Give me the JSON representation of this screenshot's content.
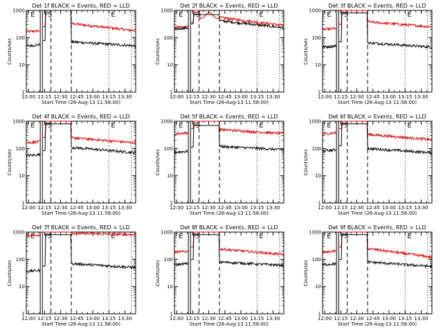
{
  "chart_data": {
    "type": "line",
    "colors": {
      "events": "#000000",
      "lld": "#e00000",
      "axes": "#000000",
      "background": "#ffffff"
    },
    "shared": {
      "ylabel": "Counts/sec",
      "xlabel": "Start Time (26-Aug-13 11:58:00)",
      "yscale": "log",
      "ylim": [
        1,
        1000
      ],
      "y_ticks": [
        "1",
        "10",
        "100",
        "1000"
      ],
      "xlim": [
        "11:58",
        "13:40"
      ],
      "x_ticks": [
        "12:00",
        "12:15",
        "12:30",
        "12:45",
        "13:00",
        "13:15",
        "13:30"
      ],
      "lines": {
        "solid": [
          "12:11",
          "12:13"
        ],
        "dashed": [
          "12:21",
          "12:40"
        ],
        "dotted": [
          "13:15",
          "13:36"
        ]
      },
      "markers": [
        {
          "text": "E",
          "time": "12:02"
        },
        {
          "text": "F",
          "time": "12:15"
        },
        {
          "text": "S",
          "time": "12:18"
        },
        {
          "text": "E",
          "time": "13:17"
        }
      ]
    },
    "panels": [
      {
        "title": "Det 1f BLACK = Events, RED = LLD",
        "black": {
          "pre": 55,
          "post": 70,
          "end": 50,
          "spike": 1000
        },
        "red": {
          "pre": 180,
          "post": 330,
          "end": 180,
          "spike": 1000
        }
      },
      {
        "title": "Det 2f BLACK = Events, RED = LLD",
        "black": {
          "pre": 230,
          "post": 420,
          "end": 230,
          "spike": 700
        },
        "red": {
          "pre": 260,
          "post": 550,
          "end": 280,
          "spike": 1000,
          "bump": 900
        }
      },
      {
        "title": "Det 3f BLACK = Events, RED = LLD",
        "black": {
          "pre": 50,
          "post": 65,
          "end": 45,
          "spike": 800
        },
        "red": {
          "pre": 220,
          "post": 380,
          "end": 250,
          "spike": 1000
        }
      },
      {
        "title": "Det 4f BLACK = Events, RED = LLD",
        "black": {
          "pre": 60,
          "post": 110,
          "end": 70,
          "spike": 800
        },
        "red": {
          "pre": 180,
          "post": 250,
          "end": 160,
          "spike": 1000
        }
      },
      {
        "title": "Det 5f BLACK = Events, RED = LLD",
        "black": {
          "pre": 80,
          "post": 120,
          "end": 90,
          "spike": 700
        },
        "red": {
          "pre": 380,
          "post": 500,
          "end": 350,
          "spike": 1000
        }
      },
      {
        "title": "Det 6f BLACK = Events, RED = LLD",
        "black": {
          "pre": 90,
          "post": 100,
          "end": 70,
          "spike": 800
        },
        "red": {
          "pre": 380,
          "post": 330,
          "end": 210,
          "spike": 1000
        }
      },
      {
        "title": "Det 7f BLACK = Events, RED = LLD",
        "black": {
          "pre": 40,
          "post": 70,
          "end": 50,
          "spike": 800
        },
        "red": {
          "pre": 800,
          "post": 900,
          "end": 800,
          "spike": 1000
        }
      },
      {
        "title": "Det 8f BLACK = Events, RED = LLD",
        "black": {
          "pre": 70,
          "post": 80,
          "end": 60,
          "spike": 800
        },
        "red": {
          "pre": 200,
          "post": 240,
          "end": 150,
          "spike": 1000
        }
      },
      {
        "title": "Det 9f BLACK = Events, RED = LLD",
        "black": {
          "pre": 70,
          "post": 80,
          "end": 55,
          "spike": 800
        },
        "red": {
          "pre": 200,
          "post": 250,
          "end": 120,
          "spike": 1000
        }
      }
    ]
  }
}
